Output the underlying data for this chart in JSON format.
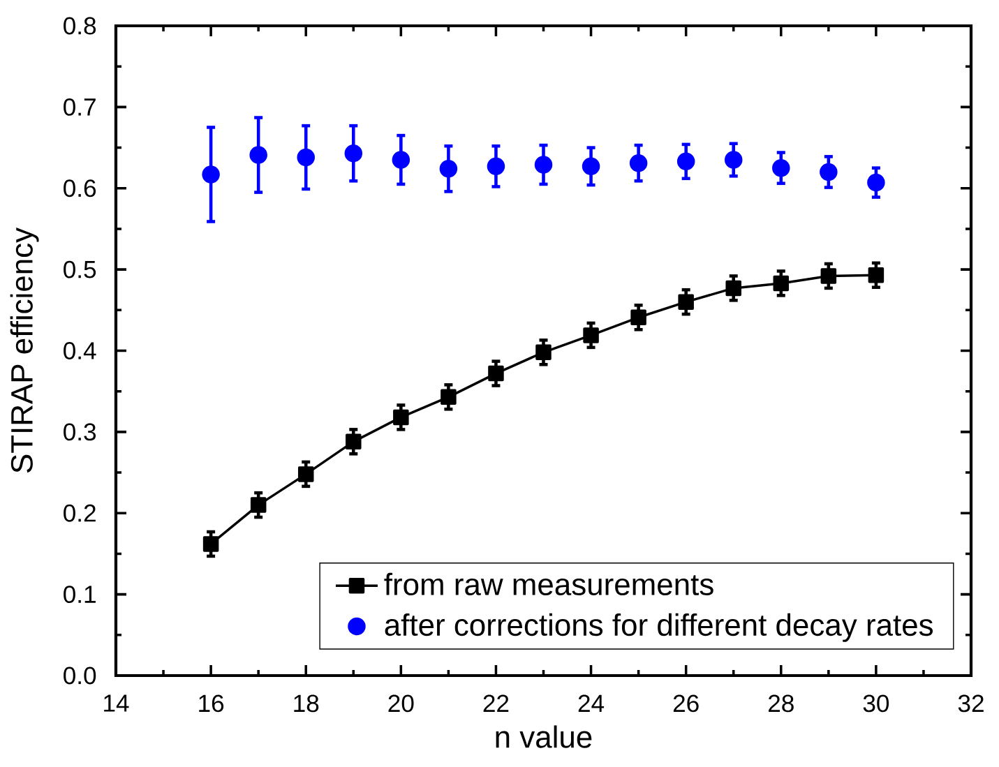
{
  "chart_data": {
    "type": "scatter",
    "xlabel": "n value",
    "ylabel": "STIRAP efficiency",
    "x": [
      16,
      17,
      18,
      19,
      20,
      21,
      22,
      23,
      24,
      25,
      26,
      27,
      28,
      29,
      30
    ],
    "xlim": [
      14,
      32
    ],
    "xticks": [
      14,
      16,
      18,
      20,
      22,
      24,
      26,
      28,
      30,
      32
    ],
    "ylim": [
      0,
      0.8
    ],
    "yticks": [
      {
        "value": 0,
        "label": "0.0"
      },
      0.1,
      0.2,
      0.3,
      0.4,
      0.5,
      0.6,
      0.7,
      0.8
    ],
    "grid": false,
    "legend": "bottom right",
    "series": [
      {
        "name": "from raw measurements",
        "type": "line",
        "color": "#000000",
        "marker": "square",
        "line_style": "solid",
        "values": [
          0.162,
          0.21,
          0.248,
          0.288,
          0.318,
          0.343,
          0.372,
          0.398,
          0.419,
          0.441,
          0.46,
          0.477,
          0.483,
          0.492,
          0.493
        ],
        "errors": [
          0.015,
          0.015,
          0.015,
          0.015,
          0.015,
          0.015,
          0.015,
          0.015,
          0.015,
          0.015,
          0.015,
          0.015,
          0.015,
          0.015,
          0.015
        ]
      },
      {
        "name": "after corrections for different decay rates",
        "type": "scatter",
        "color": "#0000ff",
        "marker": "circle",
        "values": [
          0.617,
          0.641,
          0.638,
          0.643,
          0.635,
          0.624,
          0.627,
          0.629,
          0.627,
          0.631,
          0.633,
          0.635,
          0.625,
          0.62,
          0.607
        ],
        "errors": [
          0.058,
          0.046,
          0.039,
          0.034,
          0.03,
          0.028,
          0.025,
          0.024,
          0.023,
          0.022,
          0.021,
          0.02,
          0.019,
          0.019,
          0.018
        ]
      }
    ]
  }
}
